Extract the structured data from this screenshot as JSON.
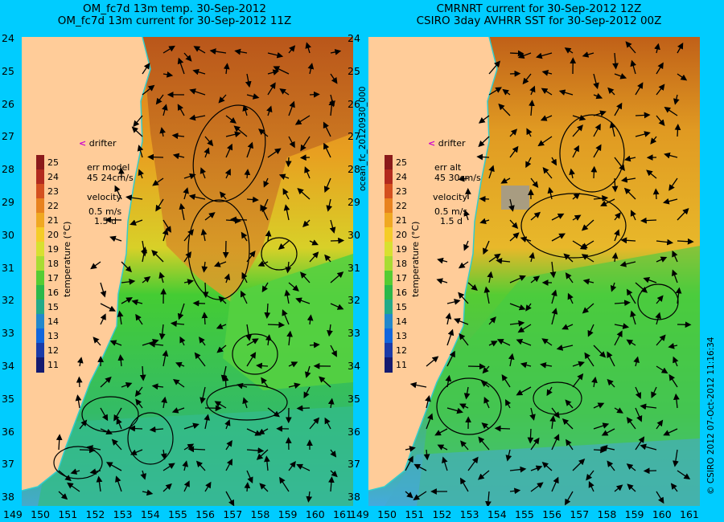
{
  "left_panel": {
    "title_line1": "OM_fc7d 13m temp. 30-Sep-2012",
    "title_line2": "OM_fc7d 13m current for 30-Sep-2012 11Z",
    "error_label": "err model",
    "error_value": "45 24cm/s"
  },
  "right_panel": {
    "title_line1": "CMRNRT current for 30-Sep-2012 12Z",
    "title_line2": "CSIRO 3day AVHRR SST for 30-Sep-2012 00Z",
    "error_label": "err alt",
    "error_value": "45 30cm/s"
  },
  "legend": {
    "drifter_label": "drifter",
    "velocity_label": "velocity",
    "velocity_scale": "0.5 m/s",
    "velocity_time": "1.5 d",
    "colorbar_title": "temperature (°C)",
    "colorbar_ticks": [
      "25",
      "24",
      "23",
      "22",
      "21",
      "20",
      "19",
      "18",
      "17",
      "16",
      "15",
      "14",
      "13",
      "12",
      "11"
    ]
  },
  "y_ticks": [
    "24",
    "25",
    "26",
    "27",
    "28",
    "29",
    "30",
    "31",
    "32",
    "33",
    "34",
    "35",
    "36",
    "37",
    "38"
  ],
  "x_ticks": [
    "149",
    "150",
    "151",
    "152",
    "153",
    "154",
    "155",
    "156",
    "157",
    "158",
    "159",
    "160",
    "161"
  ],
  "side_label": "ocean_fc_20120930_000",
  "footer_label": "© CSIRO 2012   07-Oct-2012 11:16:34",
  "colors": {
    "background": "#00ccff",
    "land": "#ffcc99",
    "drifter": "#cc00cc",
    "coastline": "#33cccc"
  }
}
